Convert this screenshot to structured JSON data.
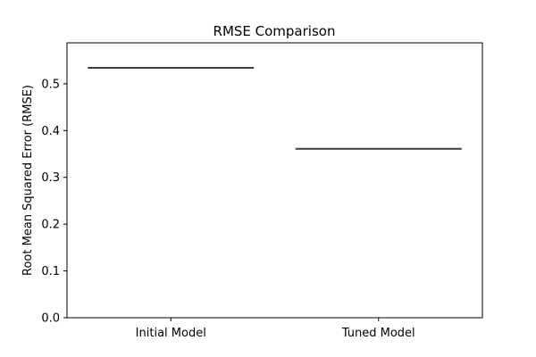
{
  "chart_data": {
    "type": "box",
    "title": "RMSE Comparison",
    "xlabel": "",
    "ylabel": "Root Mean Squared Error (RMSE)",
    "categories": [
      "Initial Model",
      "Tuned Model"
    ],
    "values": [
      0.534,
      0.361
    ],
    "ylim": [
      0,
      0.5875
    ],
    "yticks": [
      0.0,
      0.1,
      0.2,
      0.3,
      0.4,
      0.5
    ],
    "ytick_labels": [
      "0.0",
      "0.1",
      "0.2",
      "0.3",
      "0.4",
      "0.5"
    ],
    "grid": false,
    "legend": "none",
    "colors": {
      "line": "#3d3d3d",
      "axis": "#000000"
    }
  }
}
